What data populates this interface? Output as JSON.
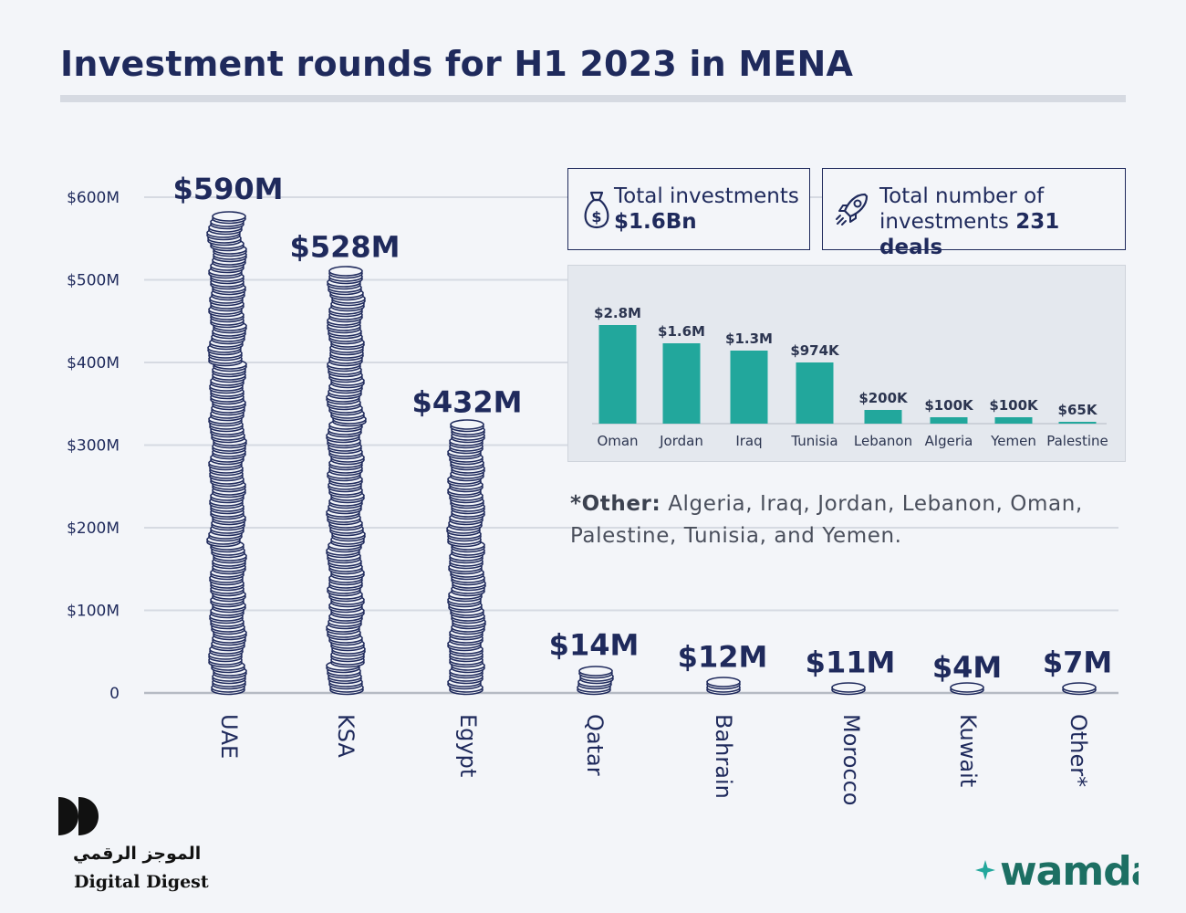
{
  "title": "Investment rounds for H1 2023 in MENA",
  "colors": {
    "navy": "#1f2a5c",
    "teal": "#22a79c",
    "grid": "#d6dae2",
    "background": "#f3f5f9"
  },
  "cards": {
    "total_investments": {
      "icon": "money-bag-icon",
      "label": "Total investments",
      "value": "$1.6Bn"
    },
    "total_deals": {
      "icon": "rocket-icon",
      "label_line1": "Total number of",
      "label_line2": "investments",
      "value": "231 deals"
    }
  },
  "note": {
    "label": "*Other:",
    "text": "Algeria, Iraq, Jordan, Lebanon, Oman, Palestine, Tunisia, and Yemen."
  },
  "chart_data": [
    {
      "type": "bar",
      "style": "stacked coins",
      "categories": [
        "UAE",
        "KSA",
        "Egypt",
        "Qatar",
        "Bahrain",
        "Morocco",
        "Kuwait",
        "Other*"
      ],
      "values": [
        590,
        528,
        432,
        14,
        12,
        11,
        4,
        7
      ],
      "data_labels": [
        "$590M",
        "$528M",
        "$432M",
        "$14M",
        "$12M",
        "$11M",
        "$4M",
        "$7M"
      ],
      "yticks": [
        0,
        100,
        200,
        300,
        400,
        500,
        600
      ],
      "ytick_labels": [
        "0",
        "$100M",
        "$200M",
        "$300M",
        "$400M",
        "$500M",
        "$600M"
      ],
      "coin_top_values": [
        580,
        510,
        322,
        28,
        14,
        7,
        1,
        7
      ],
      "ylim": [
        0,
        600
      ],
      "grid": true,
      "xtick_rotation": 90
    },
    {
      "type": "bar",
      "categories": [
        "Oman",
        "Jordan",
        "Iraq",
        "Tunisia",
        "Lebanon",
        "Algeria",
        "Yemen",
        "Palestine"
      ],
      "values": [
        2.8,
        1.6,
        1.3,
        0.974,
        0.2,
        0.1,
        0.1,
        0.065
      ],
      "data_labels": [
        "$2.8M",
        "$1.6M",
        "$1.3M",
        "$974K",
        "$200K",
        "$100K",
        "$100K",
        "$65K"
      ],
      "display_heights": [
        108,
        88,
        80,
        67,
        15,
        7,
        7,
        2
      ]
    }
  ],
  "branding": {
    "arabic": "الموجز الرقمي",
    "english": "Digital Digest",
    "wamda": "wamda"
  }
}
